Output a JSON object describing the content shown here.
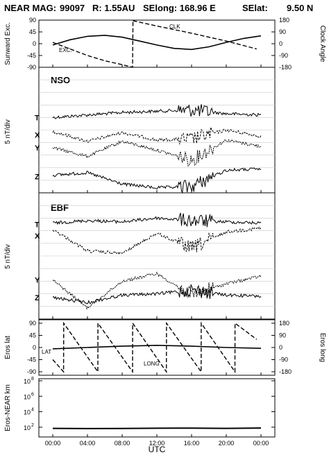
{
  "header": {
    "mission": "NEAR MAG:",
    "date": "99097",
    "r": "R: 1.55AU",
    "selong": "SElong: 168.96 E",
    "selat": "SElat:",
    "selat_val": "9.50 N"
  },
  "xaxis": {
    "label": "UTC",
    "ticks": [
      "00:00",
      "04:00",
      "08:00",
      "12:00",
      "16:00",
      "20:00",
      "00:00"
    ]
  },
  "colors": {
    "axis": "#000000",
    "grid": "#c8c8d2",
    "line": "#000000"
  },
  "chart_data": [
    {
      "id": "angles",
      "type": "line",
      "ylabel_left": "Sunward Exc.",
      "ylabel_right": "Clock Angle",
      "left_ticks": [
        "90",
        "45",
        "0",
        "-45",
        "-90"
      ],
      "right_ticks": [
        "180",
        "90",
        "0",
        "-90",
        "-180"
      ],
      "ylim_left": [
        -90,
        90
      ],
      "ylim_right": [
        -180,
        180
      ],
      "annotations": [
        "CLK",
        "EXC."
      ],
      "series": [
        {
          "axis": "left",
          "style": "solid",
          "x": [
            0,
            2,
            4,
            6,
            8,
            10,
            12,
            14,
            16,
            18,
            20,
            22,
            24
          ],
          "values": [
            -5,
            15,
            28,
            32,
            25,
            10,
            -5,
            -18,
            -22,
            -12,
            5,
            20,
            30
          ]
        },
        {
          "axis": "left",
          "style": "dashed",
          "x": [
            0,
            2,
            4,
            6,
            8,
            9.2,
            9.25
          ],
          "values": [
            5,
            -20,
            -45,
            -65,
            -80,
            -90,
            90
          ]
        },
        {
          "axis": "right",
          "style": "dashed",
          "x": [
            9.25,
            12,
            16,
            20,
            23.5
          ],
          "values": [
            175,
            135,
            80,
            20,
            -40
          ]
        }
      ]
    },
    {
      "id": "nso",
      "type": "line",
      "tag": "NSO",
      "ylabel": "5 nT/div",
      "components": [
        "T",
        "X",
        "Y",
        "Z"
      ],
      "baselines": [
        4.0,
        5.4,
        6.4,
        8.7
      ],
      "series": [
        {
          "name": "T",
          "x": [
            0,
            4,
            8,
            12,
            16,
            20,
            24
          ],
          "values": [
            0.0,
            0.2,
            0.4,
            0.5,
            0.6,
            0.3,
            0.2
          ]
        },
        {
          "name": "X",
          "x": [
            0,
            4,
            8,
            12,
            16,
            20,
            24
          ],
          "values": [
            0.3,
            -0.5,
            0.2,
            -0.4,
            -0.3,
            0.4,
            -0.1
          ]
        },
        {
          "name": "Y",
          "x": [
            0,
            4,
            8,
            12,
            16,
            20,
            24
          ],
          "values": [
            0.0,
            -0.7,
            0.5,
            -0.2,
            -1.0,
            0.6,
            0.1
          ]
        },
        {
          "name": "Z",
          "x": [
            0,
            4,
            8,
            12,
            16,
            20,
            24
          ],
          "values": [
            0.1,
            0.3,
            -0.6,
            -0.9,
            -0.8,
            0.5,
            0.6
          ]
        }
      ]
    },
    {
      "id": "ebf",
      "type": "line",
      "tag": "EBF",
      "ylabel": "5 nT/div",
      "components": [
        "T",
        "X",
        "Y",
        "Z"
      ],
      "baselines": [
        2.5,
        3.4,
        6.9,
        8.3
      ],
      "series": [
        {
          "name": "T",
          "x": [
            0,
            4,
            8,
            12,
            16,
            20,
            24
          ],
          "values": [
            0.1,
            0.3,
            0.2,
            0.5,
            0.3,
            0.2,
            0.1
          ]
        },
        {
          "name": "X",
          "x": [
            0,
            4,
            8,
            12,
            16,
            20,
            24
          ],
          "values": [
            0.5,
            -1.2,
            -1.4,
            0.2,
            -1.0,
            0.3,
            0.6
          ]
        },
        {
          "name": "Y",
          "x": [
            0,
            4,
            8,
            12,
            16,
            20,
            24
          ],
          "values": [
            0.0,
            -2.2,
            -0.1,
            0.5,
            -1.2,
            -0.3,
            0.3
          ]
        },
        {
          "name": "Z",
          "x": [
            0,
            4,
            8,
            12,
            16,
            20,
            24
          ],
          "values": [
            0.0,
            -0.4,
            0.2,
            0.3,
            0.6,
            0.2,
            0.1
          ]
        }
      ]
    },
    {
      "id": "eros",
      "type": "line",
      "ylabel_left": "Eros lat",
      "ylabel_right": "Eros long",
      "left_ticks": [
        "90",
        "45",
        "0",
        "-45",
        "-90"
      ],
      "right_ticks": [
        "180",
        "90",
        "0",
        "-90",
        "-180"
      ],
      "ylim_left": [
        -90,
        90
      ],
      "ylim_right": [
        -180,
        180
      ],
      "annotations": [
        "LAT",
        "LONG"
      ],
      "series": [
        {
          "axis": "left",
          "style": "solid",
          "x": [
            0,
            4,
            8,
            12,
            16,
            20,
            24
          ],
          "values": [
            -5,
            0,
            5,
            8,
            5,
            0,
            -3
          ]
        },
        {
          "axis": "right",
          "style": "dashed",
          "x": [
            0,
            1.25,
            1.26,
            5.2,
            5.21,
            9.2,
            9.21,
            13.1,
            13.11,
            17.1,
            17.11,
            21,
            21.01,
            23.5
          ],
          "values": [
            -90,
            -180,
            180,
            -180,
            180,
            -180,
            180,
            -180,
            180,
            -180,
            180,
            -180,
            180,
            60
          ]
        }
      ]
    },
    {
      "id": "distance",
      "type": "line",
      "ylabel": "Eros-NEAR km",
      "yscale": "log",
      "left_ticks": [
        "10",
        "10",
        "10",
        "10"
      ],
      "left_tick_exponents": [
        "8",
        "6",
        "4",
        "2"
      ],
      "ylim": [
        10,
        100000000
      ],
      "series": [
        {
          "axis": "left",
          "style": "solid",
          "x": [
            0,
            4,
            8,
            12,
            16,
            20,
            24
          ],
          "values": [
            70,
            65,
            68,
            72,
            75,
            70,
            78
          ]
        }
      ]
    }
  ]
}
